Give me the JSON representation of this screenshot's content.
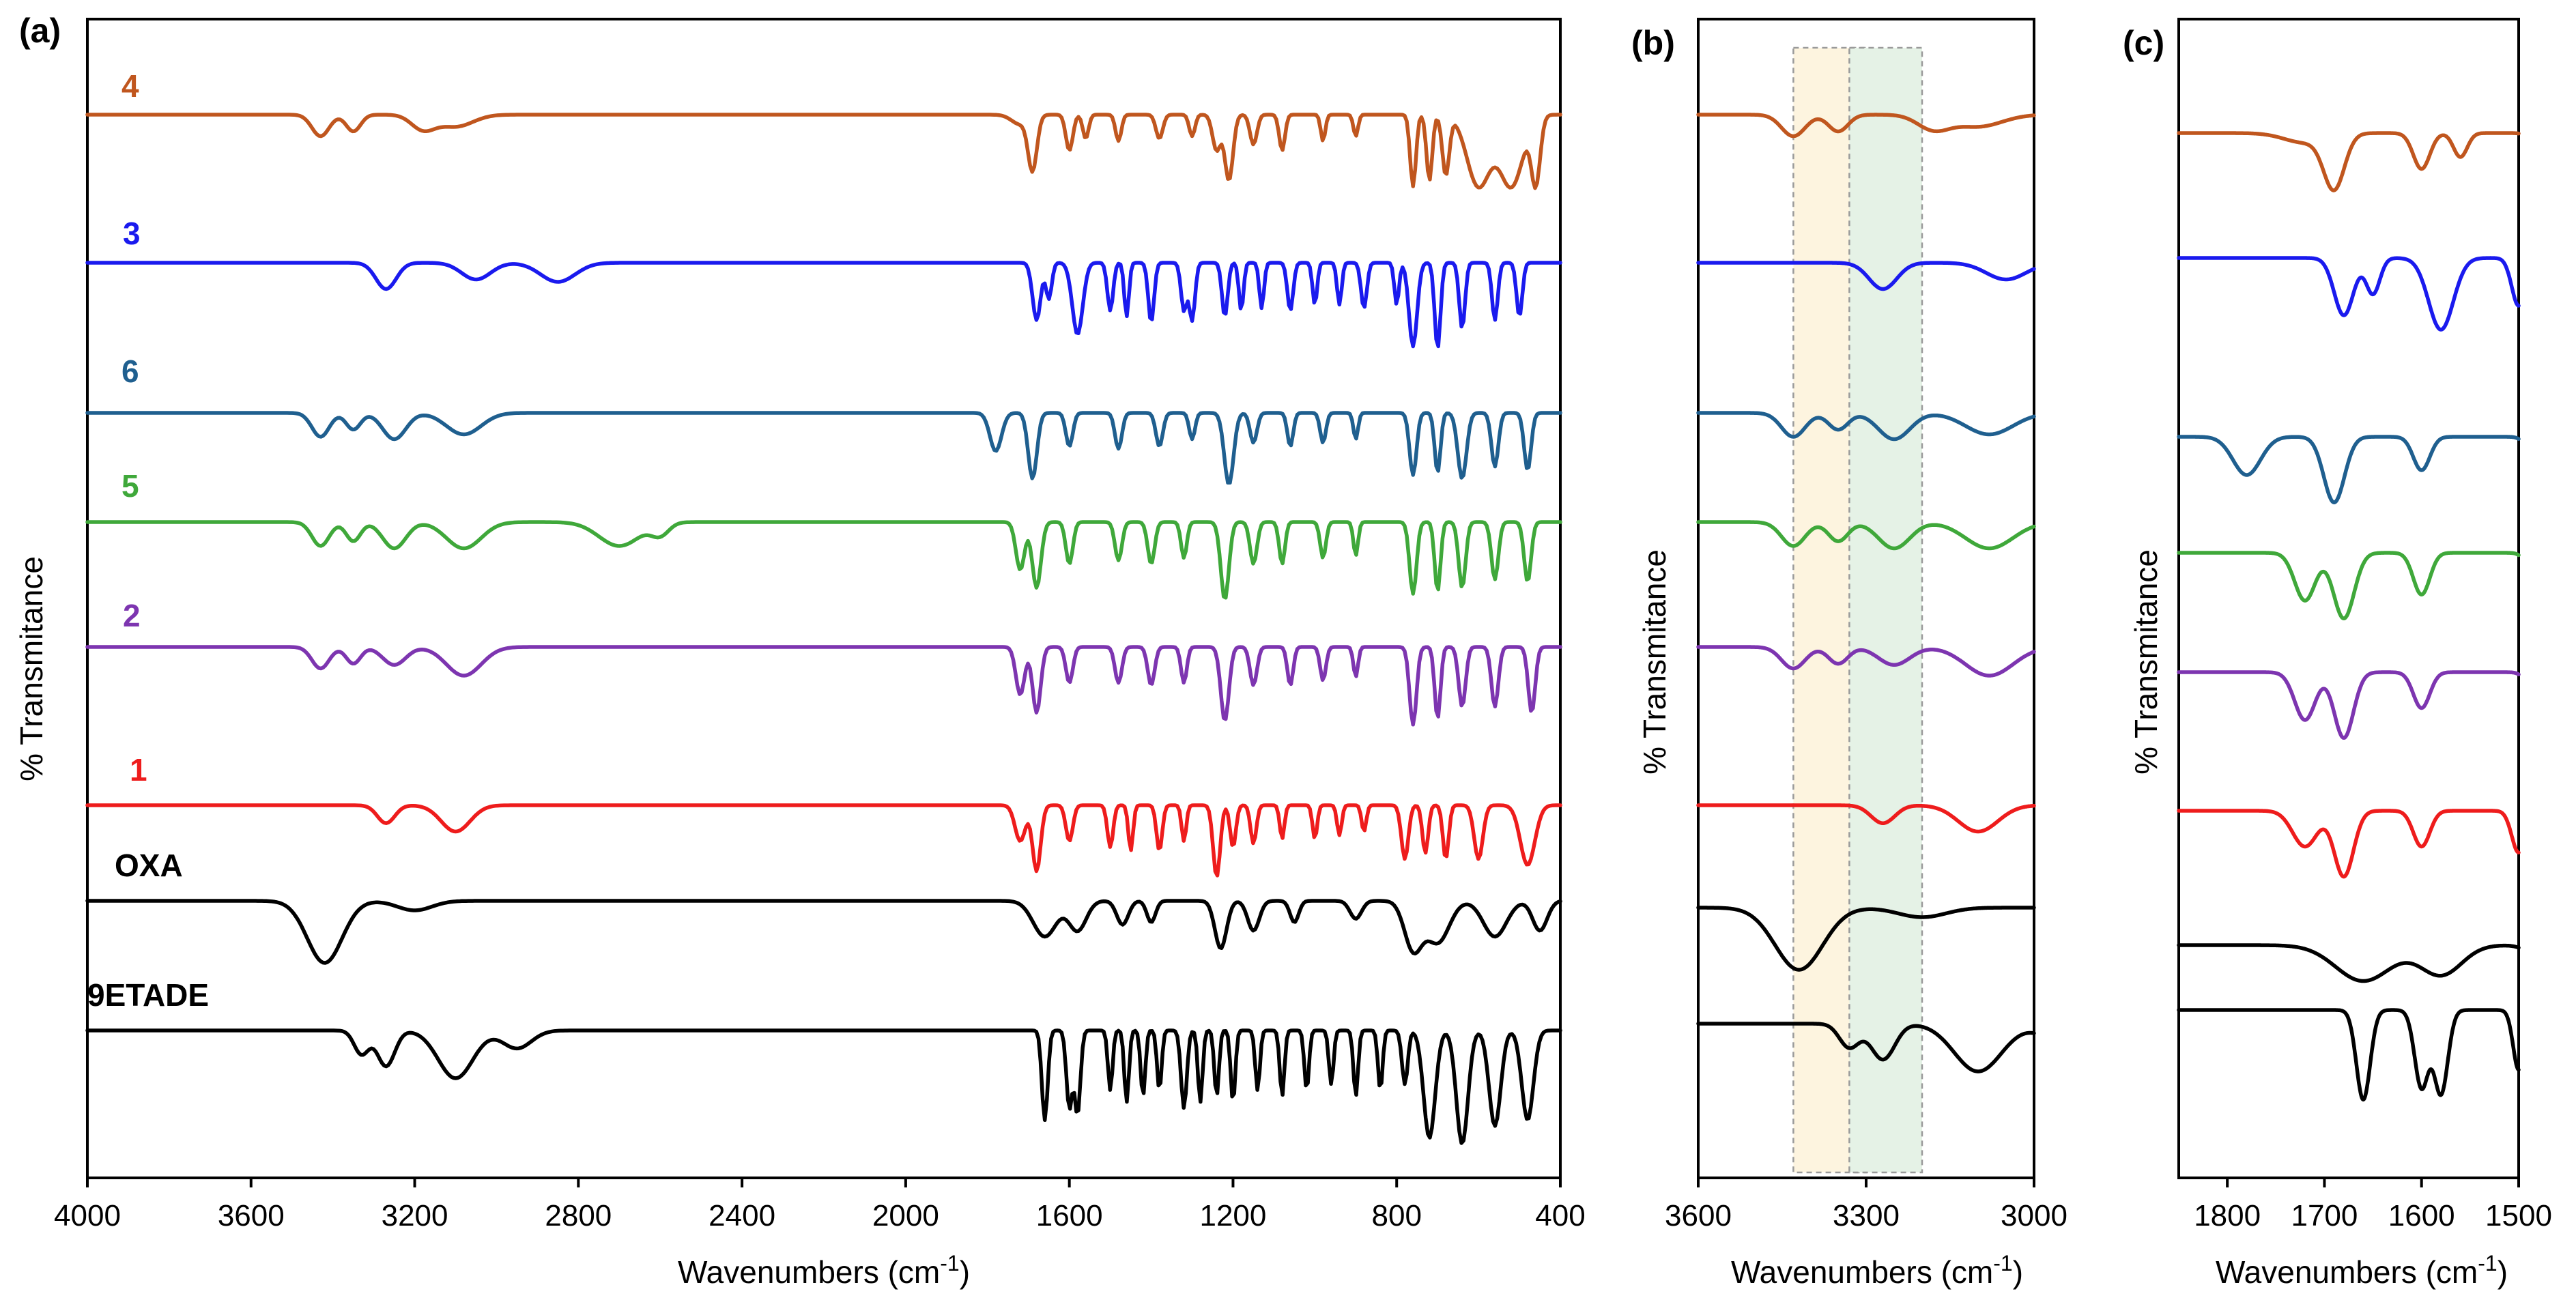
{
  "chart_data": [
    {
      "panel": "(a)",
      "type": "line",
      "xlabel": "Wavenumbers (cm",
      "xlabel_sup": "-1",
      "xlabel_end": ")",
      "ylabel": "% Transmitance",
      "xlim": [
        4000,
        400
      ],
      "x_ticks": [
        "4000",
        "3600",
        "3200",
        "2800",
        "2400",
        "2000",
        "1600",
        "1200",
        "800",
        "400"
      ],
      "x_tick_values": [
        4000,
        3600,
        3200,
        2800,
        2400,
        2000,
        1600,
        1200,
        800,
        400
      ],
      "y_units": "arbitrary stacked transmittance",
      "series": [
        {
          "name": "4",
          "color": "#c0561e",
          "offset": 0,
          "baseline": 95,
          "features": [
            [
              3430,
              18,
              30
            ],
            [
              3350,
              14,
              25
            ],
            [
              3180,
              12,
              40
            ],
            [
              3100,
              10,
              60
            ],
            [
              1720,
              8,
              30
            ],
            [
              1690,
              45,
              15
            ],
            [
              1600,
              30,
              12
            ],
            [
              1560,
              20,
              10
            ],
            [
              1480,
              22,
              10
            ],
            [
              1380,
              20,
              12
            ],
            [
              1300,
              18,
              10
            ],
            [
              1240,
              30,
              14
            ],
            [
              1210,
              55,
              14
            ],
            [
              1150,
              25,
              12
            ],
            [
              1080,
              30,
              10
            ],
            [
              980,
              22,
              8
            ],
            [
              900,
              18,
              8
            ],
            [
              760,
              60,
              10
            ],
            [
              720,
              55,
              10
            ],
            [
              680,
              50,
              12
            ],
            [
              600,
              60,
              40
            ],
            [
              520,
              60,
              40
            ],
            [
              460,
              55,
              15
            ]
          ]
        },
        {
          "name": "3",
          "color": "#1a1aee",
          "offset": -130,
          "baseline": 80,
          "features": [
            [
              3270,
              22,
              35
            ],
            [
              3050,
              14,
              50
            ],
            [
              2850,
              16,
              60
            ],
            [
              1680,
              48,
              14
            ],
            [
              1650,
              30,
              10
            ],
            [
              1580,
              60,
              18
            ],
            [
              1500,
              40,
              10
            ],
            [
              1460,
              45,
              8
            ],
            [
              1400,
              50,
              10
            ],
            [
              1320,
              40,
              10
            ],
            [
              1300,
              48,
              10
            ],
            [
              1220,
              45,
              10
            ],
            [
              1180,
              40,
              8
            ],
            [
              1130,
              38,
              8
            ],
            [
              1060,
              40,
              10
            ],
            [
              1000,
              35,
              8
            ],
            [
              940,
              35,
              8
            ],
            [
              880,
              38,
              10
            ],
            [
              800,
              35,
              8
            ],
            [
              760,
              70,
              14
            ],
            [
              700,
              72,
              10
            ],
            [
              640,
              55,
              10
            ],
            [
              560,
              48,
              10
            ],
            [
              500,
              45,
              10
            ]
          ]
        },
        {
          "name": "6",
          "color": "#1f5f8f",
          "offset": -260,
          "baseline": 80,
          "features": [
            [
              3430,
              20,
              30
            ],
            [
              3350,
              14,
              25
            ],
            [
              3250,
              22,
              40
            ],
            [
              3080,
              18,
              60
            ],
            [
              1780,
              32,
              20
            ],
            [
              1690,
              55,
              15
            ],
            [
              1600,
              28,
              12
            ],
            [
              1480,
              30,
              12
            ],
            [
              1380,
              28,
              12
            ],
            [
              1300,
              22,
              10
            ],
            [
              1210,
              60,
              16
            ],
            [
              1150,
              25,
              12
            ],
            [
              1060,
              28,
              10
            ],
            [
              980,
              25,
              10
            ],
            [
              900,
              22,
              8
            ],
            [
              760,
              52,
              12
            ],
            [
              700,
              50,
              10
            ],
            [
              640,
              55,
              15
            ],
            [
              560,
              45,
              12
            ],
            [
              480,
              48,
              12
            ]
          ]
        },
        {
          "name": "5",
          "color": "#3fa83a",
          "offset": -390,
          "baseline": 80,
          "features": [
            [
              3430,
              20,
              30
            ],
            [
              3350,
              16,
              25
            ],
            [
              3250,
              22,
              40
            ],
            [
              3080,
              22,
              60
            ],
            [
              2700,
              20,
              70
            ],
            [
              2600,
              10,
              30
            ],
            [
              1720,
              40,
              15
            ],
            [
              1680,
              55,
              15
            ],
            [
              1600,
              35,
              12
            ],
            [
              1480,
              32,
              12
            ],
            [
              1400,
              35,
              12
            ],
            [
              1320,
              30,
              10
            ],
            [
              1220,
              65,
              14
            ],
            [
              1150,
              35,
              12
            ],
            [
              1080,
              35,
              10
            ],
            [
              980,
              30,
              10
            ],
            [
              900,
              28,
              8
            ],
            [
              760,
              60,
              12
            ],
            [
              700,
              58,
              10
            ],
            [
              640,
              55,
              12
            ],
            [
              560,
              48,
              12
            ],
            [
              480,
              50,
              12
            ]
          ]
        },
        {
          "name": "2",
          "color": "#7d35b0",
          "offset": -500,
          "baseline": 80,
          "features": [
            [
              3430,
              18,
              30
            ],
            [
              3350,
              14,
              25
            ],
            [
              3250,
              15,
              40
            ],
            [
              3080,
              24,
              60
            ],
            [
              1720,
              40,
              15
            ],
            [
              1680,
              55,
              14
            ],
            [
              1600,
              30,
              12
            ],
            [
              1480,
              30,
              12
            ],
            [
              1400,
              32,
              12
            ],
            [
              1320,
              30,
              10
            ],
            [
              1220,
              62,
              14
            ],
            [
              1150,
              32,
              12
            ],
            [
              1060,
              32,
              10
            ],
            [
              980,
              28,
              10
            ],
            [
              900,
              25,
              8
            ],
            [
              760,
              65,
              12
            ],
            [
              700,
              60,
              10
            ],
            [
              640,
              50,
              12
            ],
            [
              560,
              50,
              12
            ],
            [
              470,
              55,
              12
            ]
          ]
        },
        {
          "name": "1",
          "color": "#ee1c1c",
          "offset": -660,
          "baseline": 80,
          "features": [
            [
              3270,
              15,
              30
            ],
            [
              3100,
              22,
              50
            ],
            [
              1720,
              30,
              18
            ],
            [
              1680,
              55,
              14
            ],
            [
              1600,
              30,
              12
            ],
            [
              1500,
              35,
              10
            ],
            [
              1450,
              38,
              8
            ],
            [
              1380,
              38,
              10
            ],
            [
              1320,
              30,
              8
            ],
            [
              1240,
              60,
              12
            ],
            [
              1200,
              35,
              10
            ],
            [
              1150,
              32,
              10
            ],
            [
              1080,
              28,
              8
            ],
            [
              1000,
              28,
              8
            ],
            [
              940,
              25,
              8
            ],
            [
              880,
              22,
              8
            ],
            [
              780,
              45,
              12
            ],
            [
              730,
              40,
              10
            ],
            [
              680,
              45,
              10
            ],
            [
              600,
              45,
              15
            ],
            [
              480,
              50,
              25
            ]
          ]
        },
        {
          "name": "OXA",
          "color": "#000000",
          "offset": -780,
          "baseline": 80,
          "features": [
            [
              3420,
              52,
              60
            ],
            [
              3200,
              8,
              60
            ],
            [
              1660,
              30,
              40
            ],
            [
              1580,
              25,
              30
            ],
            [
              1470,
              20,
              20
            ],
            [
              1400,
              18,
              15
            ],
            [
              1230,
              40,
              20
            ],
            [
              1150,
              25,
              20
            ],
            [
              1050,
              18,
              15
            ],
            [
              900,
              15,
              20
            ],
            [
              760,
              40,
              30
            ],
            [
              700,
              35,
              40
            ],
            [
              560,
              30,
              40
            ],
            [
              450,
              25,
              25
            ]
          ]
        },
        {
          "name": "9ETADE",
          "color": "#000000",
          "offset": -920,
          "baseline": 80,
          "features": [
            [
              3330,
              20,
              25
            ],
            [
              3270,
              30,
              30
            ],
            [
              3100,
              40,
              60
            ],
            [
              2950,
              15,
              50
            ],
            [
              1660,
              75,
              10
            ],
            [
              1600,
              65,
              10
            ],
            [
              1580,
              70,
              10
            ],
            [
              1500,
              50,
              8
            ],
            [
              1460,
              60,
              8
            ],
            [
              1420,
              55,
              8
            ],
            [
              1380,
              50,
              8
            ],
            [
              1320,
              65,
              10
            ],
            [
              1280,
              60,
              8
            ],
            [
              1240,
              55,
              8
            ],
            [
              1200,
              60,
              8
            ],
            [
              1140,
              50,
              8
            ],
            [
              1080,
              55,
              8
            ],
            [
              1020,
              50,
              8
            ],
            [
              960,
              45,
              8
            ],
            [
              900,
              55,
              8
            ],
            [
              840,
              50,
              8
            ],
            [
              780,
              45,
              10
            ],
            [
              720,
              90,
              20
            ],
            [
              640,
              95,
              20
            ],
            [
              560,
              80,
              20
            ],
            [
              480,
              75,
              20
            ]
          ]
        }
      ]
    },
    {
      "panel": "(b)",
      "type": "line",
      "xlabel": "Wavenumbers (cm",
      "xlabel_sup": "-1",
      "xlabel_end": ")",
      "ylabel": "% Transmitance",
      "xlim": [
        3600,
        3000
      ],
      "x_ticks": [
        "3600",
        "3300",
        "3000"
      ],
      "x_tick_values": [
        3600,
        3300,
        3000
      ],
      "highlight_bands": [
        {
          "x": [
            3430,
            3300
          ],
          "color": "#fdf4df"
        },
        {
          "x": [
            3330,
            3200
          ],
          "color": "#e5f2e6"
        }
      ]
    },
    {
      "panel": "(c)",
      "type": "line",
      "xlabel": "Wavenumbers (cm",
      "xlabel_sup": "-1",
      "xlabel_end": ")",
      "ylabel": "% Transmitance",
      "xlim": [
        1850,
        1500
      ],
      "x_ticks": [
        "1800",
        "1700",
        "1600",
        "1500"
      ],
      "x_tick_values": [
        1800,
        1700,
        1600,
        1500
      ]
    }
  ]
}
